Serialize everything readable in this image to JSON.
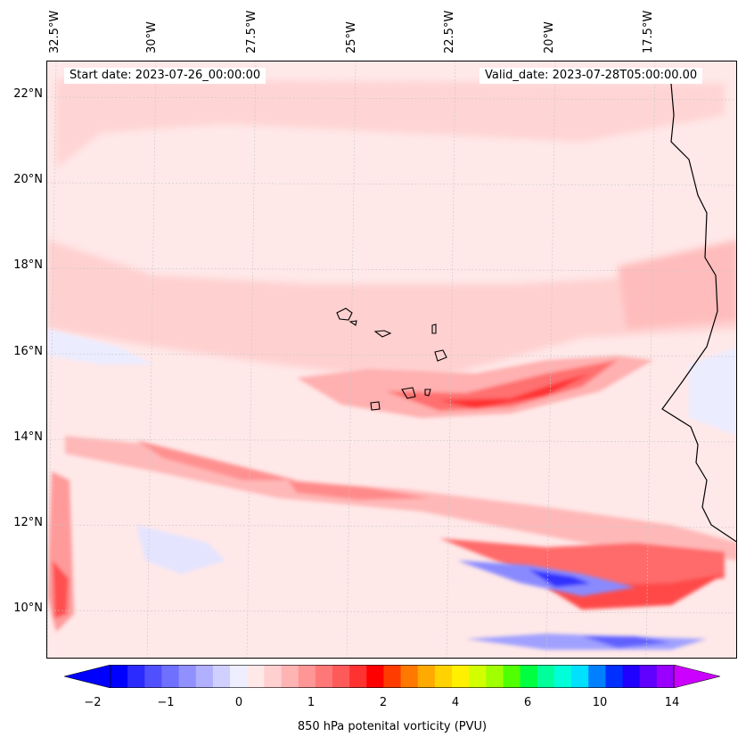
{
  "map": {
    "start_date": "Start date: 2023-07-26_00:00:00",
    "valid_date": "Valid_date: 2023-07-28T05:00:00.00",
    "longitude_labels": [
      "32.5°W",
      "30°W",
      "27.5°W",
      "25°W",
      "22.5°W",
      "20°W",
      "17.5°W"
    ],
    "latitude_labels": [
      "22°N",
      "20°N",
      "18°N",
      "16°N",
      "14°N",
      "12°N",
      "10°N"
    ],
    "field": "850 hPa potential vorticity",
    "units": "PVU"
  },
  "colorbar": {
    "tick_labels": [
      "−2",
      "−1",
      "0",
      "1",
      "2",
      "4",
      "6",
      "10",
      "14"
    ],
    "label": "850 hPa potenital vorticity (PVU)",
    "colors": [
      "#0000ff",
      "#2b2bff",
      "#5050ff",
      "#7070ff",
      "#9090ff",
      "#b0b0ff",
      "#d0d0ff",
      "#eeeeff",
      "#ffe8e8",
      "#ffd0d0",
      "#ffb4b4",
      "#ff9696",
      "#ff7878",
      "#ff5a5a",
      "#ff3232",
      "#ff0000",
      "#ff3c00",
      "#ff7800",
      "#ffaa00",
      "#ffd200",
      "#fff000",
      "#d2ff00",
      "#a0ff00",
      "#50ff00",
      "#00ff40",
      "#00ff9a",
      "#00ffd8",
      "#00e0ff",
      "#0080ff",
      "#0030ff",
      "#2000ff",
      "#6000ff",
      "#9900ff"
    ],
    "under_color": "#0000ff",
    "over_color": "#cc00ff"
  }
}
